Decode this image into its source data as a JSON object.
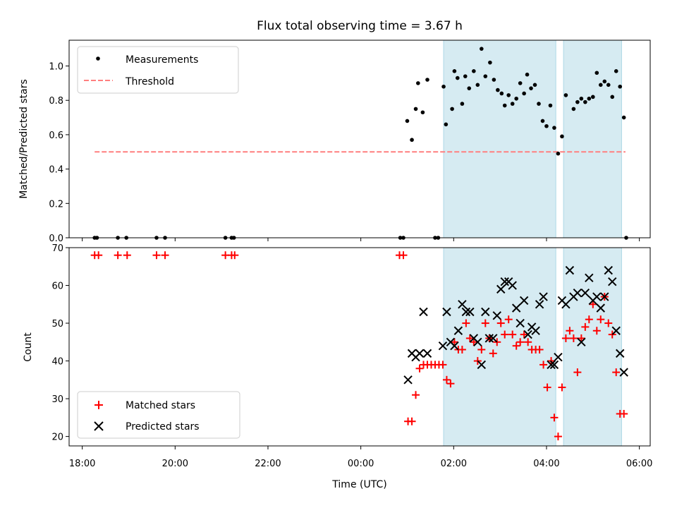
{
  "chart_data": [
    {
      "type": "scatter",
      "title": "Flux total observing time = 3.67 h",
      "xlabel": "",
      "ylabel": "Matched/Predicted stars",
      "ylim": [
        0,
        1.15
      ],
      "yticks": [
        "0.0",
        "0.2",
        "0.4",
        "0.6",
        "0.8",
        "1.0"
      ],
      "legend_position": "top-left",
      "threshold": {
        "name": "Threshold",
        "value": 0.5,
        "x_range": [
          "18:16",
          "05:42"
        ],
        "color": "#ff7f7f"
      },
      "observing_windows": [
        [
          "01:47",
          "04:12"
        ],
        [
          "04:22",
          "05:37"
        ]
      ],
      "window_color": "#add8e6",
      "series": [
        {
          "name": "Measurements",
          "color": "#000000",
          "points": [
            [
              "18:16",
              0.0
            ],
            [
              "18:19",
              0.0
            ],
            [
              "18:46",
              0.0
            ],
            [
              "18:57",
              0.0
            ],
            [
              "19:36",
              0.0
            ],
            [
              "19:47",
              0.0
            ],
            [
              "21:05",
              0.0
            ],
            [
              "21:13",
              0.0
            ],
            [
              "21:16",
              0.0
            ],
            [
              "00:51",
              0.0
            ],
            [
              "00:55",
              0.0
            ],
            [
              "01:00",
              0.68
            ],
            [
              "01:06",
              0.57
            ],
            [
              "01:11",
              0.75
            ],
            [
              "01:14",
              0.9
            ],
            [
              "01:20",
              0.73
            ],
            [
              "01:26",
              0.92
            ],
            [
              "01:36",
              0.0
            ],
            [
              "01:40",
              0.0
            ],
            [
              "01:47",
              0.88
            ],
            [
              "01:50",
              0.66
            ],
            [
              "01:58",
              0.75
            ],
            [
              "02:01",
              0.97
            ],
            [
              "02:05",
              0.93
            ],
            [
              "02:11",
              0.78
            ],
            [
              "02:15",
              0.94
            ],
            [
              "02:20",
              0.87
            ],
            [
              "02:26",
              0.97
            ],
            [
              "02:31",
              0.89
            ],
            [
              "02:36",
              1.1
            ],
            [
              "02:41",
              0.94
            ],
            [
              "02:47",
              1.02
            ],
            [
              "02:52",
              0.92
            ],
            [
              "02:57",
              0.86
            ],
            [
              "03:02",
              0.84
            ],
            [
              "03:06",
              0.77
            ],
            [
              "03:11",
              0.83
            ],
            [
              "03:16",
              0.78
            ],
            [
              "03:21",
              0.81
            ],
            [
              "03:26",
              0.9
            ],
            [
              "03:31",
              0.84
            ],
            [
              "03:35",
              0.95
            ],
            [
              "03:40",
              0.87
            ],
            [
              "03:45",
              0.89
            ],
            [
              "03:50",
              0.78
            ],
            [
              "03:55",
              0.68
            ],
            [
              "04:00",
              0.65
            ],
            [
              "04:05",
              0.77
            ],
            [
              "04:10",
              0.64
            ],
            [
              "04:15",
              0.49
            ],
            [
              "04:20",
              0.59
            ],
            [
              "04:25",
              0.83
            ],
            [
              "04:35",
              0.75
            ],
            [
              "04:40",
              0.79
            ],
            [
              "04:45",
              0.81
            ],
            [
              "04:50",
              0.79
            ],
            [
              "04:55",
              0.81
            ],
            [
              "05:00",
              0.82
            ],
            [
              "05:05",
              0.96
            ],
            [
              "05:10",
              0.89
            ],
            [
              "05:15",
              0.91
            ],
            [
              "05:20",
              0.89
            ],
            [
              "05:25",
              0.82
            ],
            [
              "05:30",
              0.97
            ],
            [
              "05:35",
              0.88
            ],
            [
              "05:40",
              0.7
            ],
            [
              "05:43",
              0.0
            ]
          ]
        }
      ]
    },
    {
      "type": "scatter",
      "title": "",
      "xlabel": "Time (UTC)",
      "ylabel": "Count",
      "ylim": [
        17.5,
        70
      ],
      "yticks": [
        "20",
        "30",
        "40",
        "50",
        "60",
        "70"
      ],
      "xticks": [
        "18:00",
        "20:00",
        "22:00",
        "00:00",
        "02:00",
        "04:00",
        "06:00"
      ],
      "legend_position": "bottom-left",
      "observing_windows": [
        [
          "01:47",
          "04:12"
        ],
        [
          "04:22",
          "05:37"
        ]
      ],
      "window_color": "#add8e6",
      "series": [
        {
          "name": "Matched stars",
          "color": "#ff0000",
          "points": [
            [
              "18:16",
              68
            ],
            [
              "18:21",
              68
            ],
            [
              "18:46",
              68
            ],
            [
              "18:58",
              68
            ],
            [
              "19:36",
              68
            ],
            [
              "19:47",
              68
            ],
            [
              "21:05",
              68
            ],
            [
              "21:13",
              68
            ],
            [
              "21:17",
              68
            ],
            [
              "00:50",
              68
            ],
            [
              "00:55",
              68
            ],
            [
              "01:01",
              24
            ],
            [
              "01:06",
              24
            ],
            [
              "01:11",
              31
            ],
            [
              "01:16",
              38
            ],
            [
              "01:21",
              39
            ],
            [
              "01:26",
              39
            ],
            [
              "01:31",
              39
            ],
            [
              "01:36",
              39
            ],
            [
              "01:41",
              39
            ],
            [
              "01:46",
              39
            ],
            [
              "01:51",
              35
            ],
            [
              "01:56",
              34
            ],
            [
              "02:01",
              45
            ],
            [
              "02:06",
              43
            ],
            [
              "02:11",
              43
            ],
            [
              "02:16",
              50
            ],
            [
              "02:21",
              46
            ],
            [
              "02:26",
              45
            ],
            [
              "02:31",
              40
            ],
            [
              "02:36",
              43
            ],
            [
              "02:41",
              50
            ],
            [
              "02:46",
              46
            ],
            [
              "02:51",
              42
            ],
            [
              "02:56",
              45
            ],
            [
              "03:01",
              50
            ],
            [
              "03:06",
              47
            ],
            [
              "03:11",
              51
            ],
            [
              "03:16",
              47
            ],
            [
              "03:21",
              44
            ],
            [
              "03:26",
              45
            ],
            [
              "03:31",
              47
            ],
            [
              "03:36",
              45
            ],
            [
              "03:41",
              43
            ],
            [
              "03:46",
              43
            ],
            [
              "03:51",
              43
            ],
            [
              "03:56",
              39
            ],
            [
              "04:01",
              33
            ],
            [
              "04:06",
              40
            ],
            [
              "04:10",
              25
            ],
            [
              "04:15",
              20
            ],
            [
              "04:20",
              33
            ],
            [
              "04:25",
              46
            ],
            [
              "04:30",
              48
            ],
            [
              "04:35",
              46
            ],
            [
              "04:40",
              37
            ],
            [
              "04:45",
              46
            ],
            [
              "04:50",
              49
            ],
            [
              "04:55",
              51
            ],
            [
              "05:00",
              55
            ],
            [
              "05:05",
              48
            ],
            [
              "05:10",
              51
            ],
            [
              "05:15",
              57
            ],
            [
              "05:20",
              50
            ],
            [
              "05:25",
              47
            ],
            [
              "05:30",
              37
            ],
            [
              "05:35",
              26
            ],
            [
              "05:40",
              26
            ]
          ]
        },
        {
          "name": "Predicted stars",
          "color": "#000000",
          "points": [
            [
              "01:01",
              35
            ],
            [
              "01:06",
              42
            ],
            [
              "01:11",
              41
            ],
            [
              "01:16",
              42
            ],
            [
              "01:21",
              53
            ],
            [
              "01:26",
              42
            ],
            [
              "01:46",
              44
            ],
            [
              "01:51",
              53
            ],
            [
              "01:56",
              45
            ],
            [
              "02:01",
              44
            ],
            [
              "02:06",
              48
            ],
            [
              "02:11",
              55
            ],
            [
              "02:16",
              53
            ],
            [
              "02:21",
              53
            ],
            [
              "02:26",
              46
            ],
            [
              "02:31",
              45
            ],
            [
              "02:36",
              39
            ],
            [
              "02:41",
              53
            ],
            [
              "02:46",
              46
            ],
            [
              "02:51",
              46
            ],
            [
              "02:56",
              52
            ],
            [
              "03:01",
              59
            ],
            [
              "03:06",
              61
            ],
            [
              "03:11",
              61
            ],
            [
              "03:16",
              60
            ],
            [
              "03:21",
              54
            ],
            [
              "03:26",
              50
            ],
            [
              "03:31",
              56
            ],
            [
              "03:36",
              47
            ],
            [
              "03:41",
              49
            ],
            [
              "03:46",
              48
            ],
            [
              "03:51",
              55
            ],
            [
              "03:56",
              57
            ],
            [
              "04:06",
              39
            ],
            [
              "04:10",
              39
            ],
            [
              "04:15",
              41
            ],
            [
              "04:20",
              56
            ],
            [
              "04:25",
              55
            ],
            [
              "04:30",
              64
            ],
            [
              "04:35",
              57
            ],
            [
              "04:40",
              58
            ],
            [
              "04:45",
              45
            ],
            [
              "04:50",
              58
            ],
            [
              "04:55",
              62
            ],
            [
              "05:00",
              56
            ],
            [
              "05:05",
              57
            ],
            [
              "05:10",
              54
            ],
            [
              "05:15",
              57
            ],
            [
              "05:20",
              64
            ],
            [
              "05:25",
              61
            ],
            [
              "05:30",
              48
            ],
            [
              "05:35",
              42
            ],
            [
              "05:40",
              37
            ]
          ]
        }
      ]
    }
  ]
}
